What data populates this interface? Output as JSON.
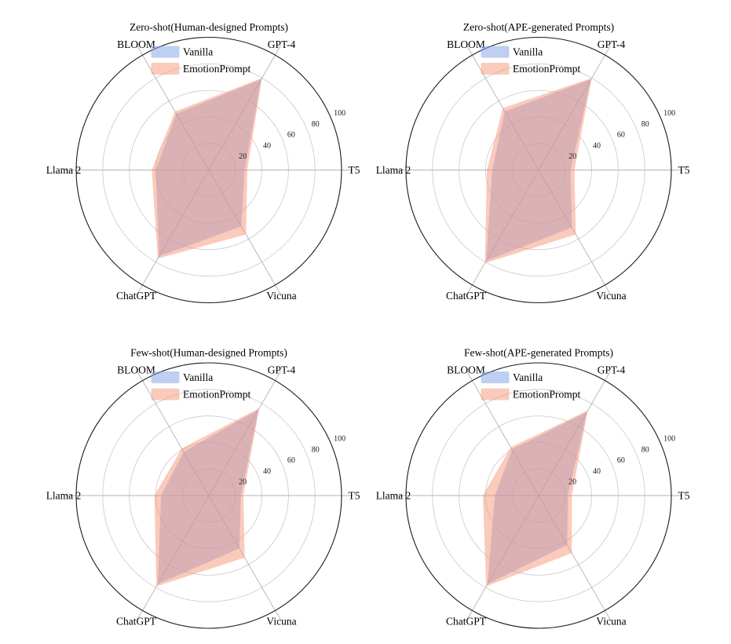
{
  "figure": {
    "background": "#ffffff",
    "colors": {
      "vanilla_fill": "rgba(125,160,230,0.5)",
      "emotion_fill": "rgba(245,150,120,0.5)",
      "grid_ring": "#c9c9c9",
      "spoke": "#b3b3b3",
      "outer_circle": "#1a1a1a",
      "text": "#000000"
    },
    "legend": {
      "items": [
        {
          "label": "Vanilla",
          "series_key": "vanilla_fill",
          "swatch": "vanilla-swatch"
        },
        {
          "label": "EmotionPrompt",
          "series_key": "emotion_fill",
          "swatch": "emotionprompt-swatch"
        }
      ]
    }
  },
  "chart_data": [
    {
      "type": "radar",
      "title": "Zero-shot(Human-designed Prompts)",
      "categories": [
        "BLOOM",
        "GPT-4",
        "T5",
        "Vicuna",
        "ChatGPT",
        "Llama 2"
      ],
      "angles_deg": [
        120,
        60,
        0,
        300,
        240,
        180
      ],
      "r_ticks": [
        20,
        40,
        60,
        80,
        100
      ],
      "r_max": 100,
      "grid": true,
      "legend_position": "upper-left-inside",
      "series": [
        {
          "name": "Vanilla",
          "values": [
            49,
            79,
            27,
            49,
            75,
            40
          ]
        },
        {
          "name": "EmotionPrompt",
          "values": [
            51,
            80,
            29,
            56,
            77,
            43
          ]
        }
      ]
    },
    {
      "type": "radar",
      "title": "Zero-shot(APE-generated Prompts)",
      "categories": [
        "BLOOM",
        "GPT-4",
        "T5",
        "Vicuna",
        "ChatGPT",
        "Llama 2"
      ],
      "angles_deg": [
        120,
        60,
        0,
        300,
        240,
        180
      ],
      "r_ticks": [
        20,
        40,
        60,
        80,
        100
      ],
      "r_max": 100,
      "grid": true,
      "legend_position": "upper-left-inside",
      "series": [
        {
          "name": "Vanilla",
          "values": [
            51,
            79,
            24,
            50,
            79,
            35
          ]
        },
        {
          "name": "EmotionPrompt",
          "values": [
            54,
            80,
            27,
            56,
            81,
            39
          ]
        }
      ]
    },
    {
      "type": "radar",
      "title": "Few-shot(Human-designed Prompts)",
      "categories": [
        "BLOOM",
        "GPT-4",
        "T5",
        "Vicuna",
        "ChatGPT",
        "Llama 2"
      ],
      "angles_deg": [
        120,
        60,
        0,
        300,
        240,
        180
      ],
      "r_ticks": [
        20,
        40,
        60,
        80,
        100
      ],
      "r_max": 100,
      "grid": true,
      "legend_position": "upper-left-inside",
      "series": [
        {
          "name": "Vanilla",
          "values": [
            38,
            75,
            24,
            46,
            77,
            36
          ]
        },
        {
          "name": "EmotionPrompt",
          "values": [
            41,
            76,
            26,
            54,
            79,
            41
          ]
        }
      ]
    },
    {
      "type": "radar",
      "title": "Few-shot(APE-generated Prompts)",
      "categories": [
        "BLOOM",
        "GPT-4",
        "T5",
        "Vicuna",
        "ChatGPT",
        "Llama 2"
      ],
      "angles_deg": [
        120,
        60,
        0,
        300,
        240,
        180
      ],
      "r_ticks": [
        20,
        40,
        60,
        80,
        100
      ],
      "r_max": 100,
      "grid": true,
      "legend_position": "upper-left-inside",
      "series": [
        {
          "name": "Vanilla",
          "values": [
            40,
            73,
            22,
            43,
            77,
            33
          ]
        },
        {
          "name": "EmotionPrompt",
          "values": [
            42,
            74,
            25,
            50,
            79,
            42
          ]
        }
      ]
    }
  ]
}
